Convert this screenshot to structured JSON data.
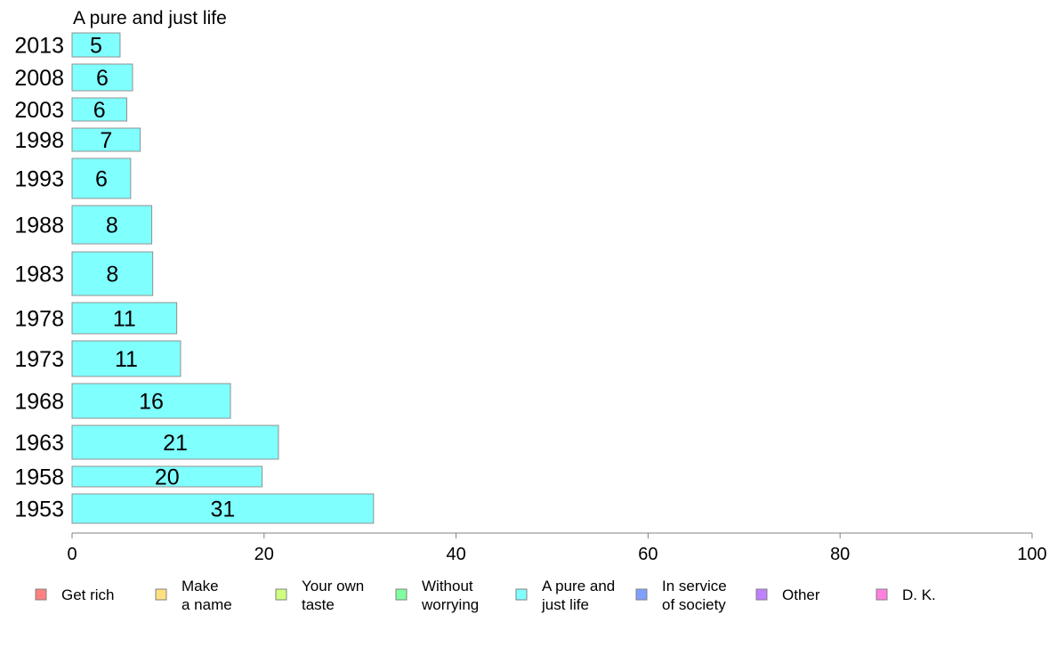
{
  "chart_data": {
    "type": "bar",
    "orientation": "horizontal",
    "title": "A pure and just life",
    "categories": [
      "2013",
      "2008",
      "2003",
      "1998",
      "1993",
      "1988",
      "1983",
      "1978",
      "1973",
      "1968",
      "1963",
      "1958",
      "1953"
    ],
    "values": [
      5.0,
      6.3,
      5.7,
      7.1,
      6.1,
      8.3,
      8.4,
      10.9,
      11.3,
      16.5,
      21.5,
      19.8,
      31.4
    ],
    "value_labels": [
      "5",
      "6",
      "6",
      "7",
      "6",
      "8",
      "8",
      "11",
      "11",
      "16",
      "21",
      "20",
      "31"
    ],
    "series_color": "#80ffff",
    "xlim": [
      0,
      100
    ],
    "x_ticks": [
      0,
      20,
      40,
      60,
      80,
      100
    ],
    "legend": [
      {
        "lines": [
          "Get rich"
        ],
        "color": "#ff8080"
      },
      {
        "lines": [
          "Make",
          "a name"
        ],
        "color": "#ffe080"
      },
      {
        "lines": [
          "Your own",
          "taste"
        ],
        "color": "#d0ff80"
      },
      {
        "lines": [
          "Without",
          "worrying"
        ],
        "color": "#80ffa0"
      },
      {
        "lines": [
          "A pure and",
          "just life"
        ],
        "color": "#80ffff"
      },
      {
        "lines": [
          "In service",
          "of society"
        ],
        "color": "#80a0ff"
      },
      {
        "lines": [
          "Other"
        ],
        "color": "#c080ff"
      },
      {
        "lines": [
          "D. K."
        ],
        "color": "#ff80e0"
      }
    ],
    "legend_position": "bottom"
  }
}
